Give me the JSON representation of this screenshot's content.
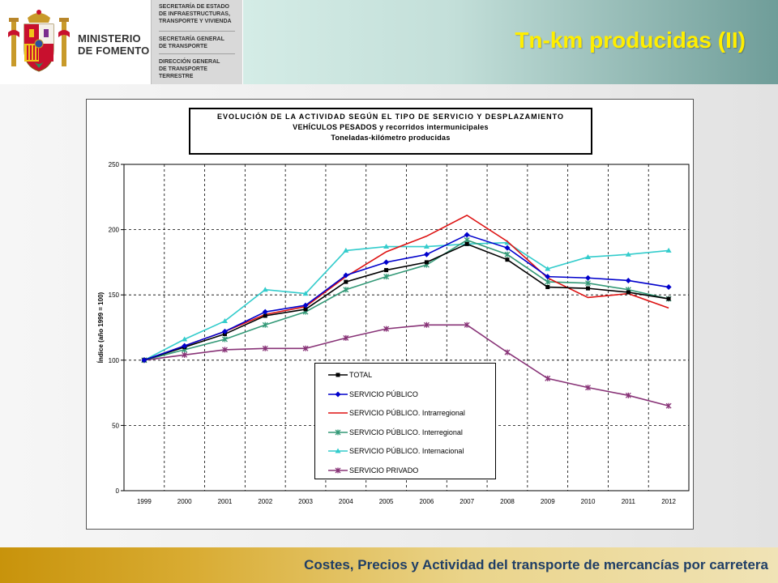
{
  "header": {
    "ministry_name": "MINISTERIO\nDE FOMENTO",
    "agencies": [
      "SECRETARÍA DE ESTADO\nDE INFRAESTRUCTURAS,\nTRANSPORTE Y VIVIENDA",
      "SECRETARÍA GENERAL\nDE TRANSPORTE",
      "DIRECCIÓN GENERAL\nDE TRANSPORTE\nTERRESTRE"
    ],
    "crest_icon": "spain-coat-of-arms-icon"
  },
  "slide_title": "Tn-km producidas (II)",
  "footer_text": "Costes, Precios y Actividad del transporte de mercancías por carretera",
  "colors": {
    "title": "#ffee00",
    "footer_text": "#1f3e66"
  },
  "chart_data": {
    "type": "line",
    "title_lines": [
      "EVOLUCIÓN DE LA ACTIVIDAD SEGÚN EL TIPO DE SERVICIO Y DESPLAZAMIENTO",
      "VEHÍCULOS PESADOS y recorridos intermunicipales",
      "Toneladas-kilómetro producidas"
    ],
    "ylabel": "Índice (año 1999 = 100)",
    "xlabel": "",
    "ylim": [
      0,
      250
    ],
    "yticks": [
      0,
      50,
      100,
      150,
      200,
      250
    ],
    "grid": "dashed",
    "legend_position": "bottom-center",
    "x": [
      "1999",
      "2000",
      "2001",
      "2002",
      "2003",
      "2004",
      "2005",
      "2006",
      "2007",
      "2008",
      "2009",
      "2010",
      "2011",
      "2012"
    ],
    "series": [
      {
        "name": "TOTAL",
        "color": "#000000",
        "marker": "square",
        "values": [
          100,
          110,
          120,
          134,
          139,
          160,
          169,
          175,
          189,
          177,
          156,
          155,
          152,
          147
        ]
      },
      {
        "name": "SERVICIO PÚBLICO",
        "color": "#0000cc",
        "marker": "diamond",
        "values": [
          100,
          111,
          122,
          137,
          142,
          165,
          175,
          181,
          196,
          186,
          164,
          163,
          161,
          156
        ]
      },
      {
        "name": "SERVICIO PÚBLICO. Intrarregional",
        "color": "#dd1111",
        "marker": "none",
        "values": [
          100,
          111,
          122,
          135,
          141,
          164,
          183,
          195,
          211,
          191,
          163,
          148,
          151,
          140
        ]
      },
      {
        "name": "SERVICIO PÚBLICO. Interregional",
        "color": "#339977",
        "marker": "star",
        "values": [
          100,
          108,
          116,
          127,
          137,
          154,
          164,
          173,
          192,
          181,
          160,
          159,
          154,
          147
        ]
      },
      {
        "name": "SERVICIO PÚBLICO. Internacional",
        "color": "#33cccc",
        "marker": "triangle",
        "values": [
          100,
          116,
          130,
          154,
          151,
          184,
          187,
          187,
          189,
          190,
          170,
          179,
          181,
          184
        ]
      },
      {
        "name": "SERVICIO PRIVADO",
        "color": "#883377",
        "marker": "star",
        "values": [
          100,
          104,
          108,
          109,
          109,
          117,
          124,
          127,
          127,
          106,
          86,
          79,
          73,
          65
        ]
      }
    ]
  }
}
